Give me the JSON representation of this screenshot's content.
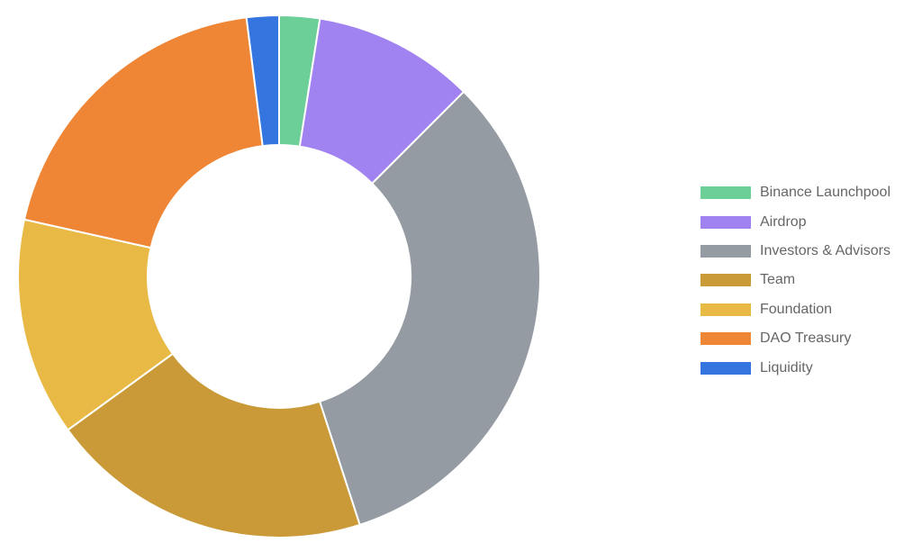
{
  "chart_data": {
    "type": "pie",
    "variant": "donut",
    "title": "",
    "legend_position": "right",
    "categories": [
      "Binance Launchpool",
      "Airdrop",
      "Investors & Advisors",
      "Team",
      "Foundation",
      "DAO Treasury",
      "Liquidity"
    ],
    "values": [
      2.5,
      10,
      32.5,
      20,
      13.5,
      19.5,
      2
    ],
    "colors": [
      "#6bcf97",
      "#a182f1",
      "#959ba3",
      "#c99a37",
      "#e8b944",
      "#ef8636",
      "#3575e0"
    ]
  }
}
